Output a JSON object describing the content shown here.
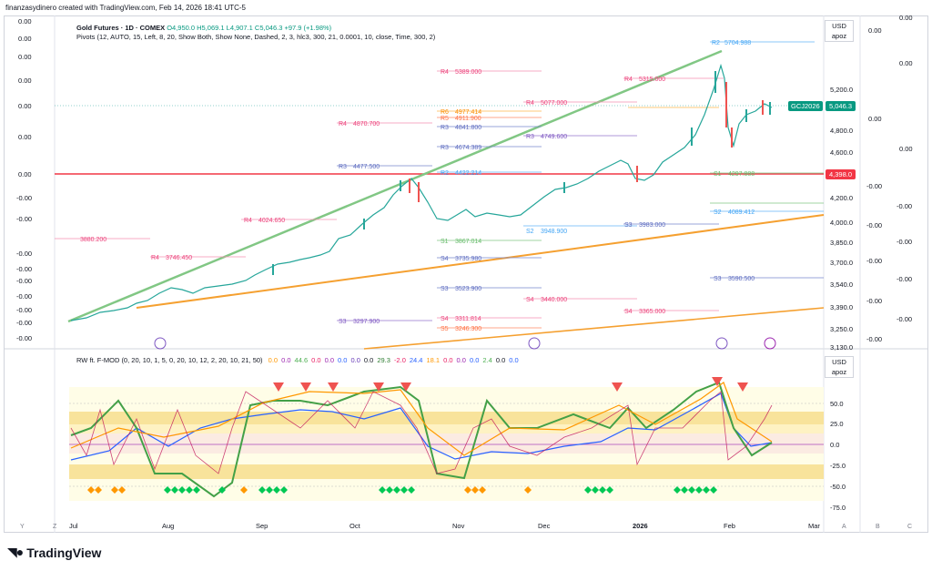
{
  "header": {
    "credit": "finanzasydinero created with TradingView.com, Feb 14, 2026 18:41 UTC-5"
  },
  "instrument": {
    "title": "Gold Futures · 1D · COMEX",
    "ohlc": "O4,950.0 H5,069.1 L4,907.1 C5,046.3 +97.9 (+1.98%)",
    "indicator": "Pivots (12, AUTO, 15, Left, 8, 20, Show Both, Show None, Dashed, 2, 3, hlc3, 300, 21, 0.0001, 10, close, Time, 300, 2)"
  },
  "price_axis": {
    "currency": "USD",
    "mode": "apoz",
    "ticks": [
      "5,200.0",
      "4,800.0",
      "4,600.0",
      "4,200.0",
      "4,000.0",
      "3,850.0",
      "3,700.0",
      "3,540.0",
      "3,390.0",
      "3,250.0",
      "3,130.0"
    ],
    "symbol_chip": "GCJ2026",
    "last_price": "5,046.3",
    "level_chip": "4,398.0"
  },
  "left_axis_labels": [
    "0.00",
    "0.00",
    "0.00",
    "0.00",
    "0.00",
    "0.00",
    "0.00",
    "-0.00",
    "-0.00",
    "-0.00",
    "-0.00",
    "-0.00",
    "-0.00",
    "-0.00",
    "-0.00",
    "-0.00"
  ],
  "right_axis_labels": [
    "0.00",
    "0.00",
    "0.00",
    "0.00",
    "0.00",
    "-0.00",
    "-0.00",
    "-0.00",
    "-0.00",
    "-0.00",
    "-0.00",
    "-0.00",
    "-0.00",
    "-0.00"
  ],
  "pivot_labels": [
    {
      "t": "R2",
      "v": "5704.988"
    },
    {
      "t": "R4",
      "v": "5389.000"
    },
    {
      "t": "R4",
      "v": "5077.000"
    },
    {
      "t": "R4",
      "v": "5315.000"
    },
    {
      "t": "R4",
      "v": "4870.700"
    },
    {
      "t": "R6",
      "v": "4977.414"
    },
    {
      "t": "R5",
      "v": "4911.900"
    },
    {
      "t": "R3",
      "v": "4841.800"
    },
    {
      "t": "R3",
      "v": "4749.600"
    },
    {
      "t": "R3",
      "v": "4674.389"
    },
    {
      "t": "R3",
      "v": "4477.500"
    },
    {
      "t": "R2",
      "v": "4422.214"
    },
    {
      "t": "R4",
      "v": "4024.650"
    },
    {
      "t": "S1",
      "v": "3867.014"
    },
    {
      "t": "R4",
      "v": "3746.450"
    },
    {
      "t": "S4",
      "v": "3735.980"
    },
    {
      "t": "S2",
      "v": "3948.900"
    },
    {
      "t": "S3",
      "v": "3983.000"
    },
    {
      "t": "S4",
      "v": "3440.000"
    },
    {
      "t": "S4",
      "v": "3365.000"
    },
    {
      "t": "S2",
      "v": "4089.412"
    },
    {
      "t": "S1",
      "v": "4297.888"
    },
    {
      "t": "S3",
      "v": "3523.900"
    },
    {
      "t": "S3",
      "v": "3297.900"
    },
    {
      "t": "S4",
      "v": "3311.814"
    },
    {
      "t": "S5",
      "v": "3246.300"
    },
    {
      "t": "",
      "v": "3880.200"
    },
    {
      "t": "S3",
      "v": "3590.500"
    }
  ],
  "oscillator": {
    "title": "RW ft. F-MOD (0, 20, 10, 1, 5, 0, 20, 10, 12, 2, 20, 10, 21, 50)",
    "values": [
      {
        "v": "0.0",
        "c": "#ff9800"
      },
      {
        "v": "0.0",
        "c": "#9c27b0"
      },
      {
        "v": "44.6",
        "c": "#4caf50"
      },
      {
        "v": "0.0",
        "c": "#e91e63"
      },
      {
        "v": "0.0",
        "c": "#9c27b0"
      },
      {
        "v": "0.0",
        "c": "#2962ff"
      },
      {
        "v": "0.0",
        "c": "#673ab7"
      },
      {
        "v": "0.0",
        "c": "#131722"
      },
      {
        "v": "29.3",
        "c": "#2e7d32"
      },
      {
        "v": "-2.0",
        "c": "#e91e63"
      },
      {
        "v": "24.4",
        "c": "#2962ff"
      },
      {
        "v": "18.1",
        "c": "#ff9800"
      },
      {
        "v": "0.0",
        "c": "#e91e63"
      },
      {
        "v": "0.0",
        "c": "#9c27b0"
      },
      {
        "v": "0.0",
        "c": "#2962ff"
      },
      {
        "v": "2.4",
        "c": "#4caf50"
      },
      {
        "v": "0.0",
        "c": "#131722"
      },
      {
        "v": "0.0",
        "c": "#2962ff"
      }
    ],
    "currency": "USD",
    "mode": "apoz",
    "ticks": [
      "50.0",
      "25.0",
      "0.0",
      "-25.0",
      "-50.0",
      "-75.0"
    ]
  },
  "time_axis": [
    "Jul",
    "Aug",
    "Sep",
    "Oct",
    "Nov",
    "Dec",
    "2026",
    "Feb",
    "Mar"
  ],
  "bottom_buttons": [
    "Y",
    "Z",
    "A",
    "B",
    "C"
  ],
  "brand": "TradingView",
  "colors": {
    "up": "#26a69a",
    "down": "#ef5350",
    "highlight": "#f23645",
    "chip": "#089981"
  }
}
